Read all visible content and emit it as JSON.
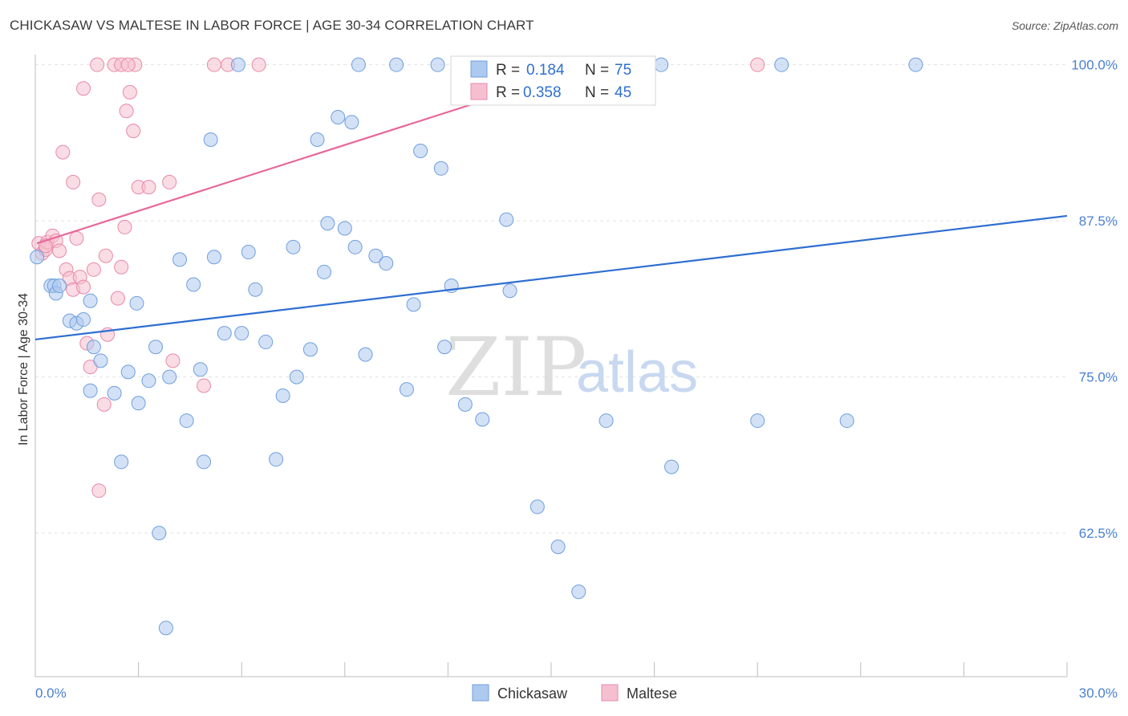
{
  "header": {
    "title": "CHICKASAW VS MALTESE IN LABOR FORCE | AGE 30-34 CORRELATION CHART",
    "source": "Source: ZipAtlas.com"
  },
  "colors": {
    "chickasaw_fill": "#aec9ef",
    "chickasaw_stroke": "#6f9fde",
    "chickasaw_line": "#2e6ed1",
    "maltese_fill": "#f6bfd0",
    "maltese_stroke": "#e889a8",
    "maltese_line": "#e8689a",
    "tick_label": "#4a7fd0",
    "grid": "#e2e2e2"
  },
  "legend": {
    "rows": [
      {
        "r_label": "R =",
        "r_value": "0.184",
        "n_label": "N =",
        "n_value": "75"
      },
      {
        "r_label": "R =",
        "r_value": "0.358",
        "n_label": "N =",
        "n_value": "45"
      }
    ]
  },
  "watermark": {
    "zip": "ZIP",
    "atlas": "atlas"
  },
  "chart_data": {
    "type": "scatter",
    "title": "CHICKASAW VS MALTESE IN LABOR FORCE | AGE 30-34 CORRELATION CHART",
    "xlabel": "",
    "ylabel": "In Labor Force | Age 30-34",
    "xlim": [
      0,
      30
    ],
    "ylim": [
      51,
      101.2
    ],
    "x_tick_labels": [
      {
        "value": 0,
        "label": "0.0%"
      },
      {
        "value": 30,
        "label": "30.0%"
      }
    ],
    "y_tick_labels": [
      {
        "value": 100,
        "label": "100.0%"
      },
      {
        "value": 87.5,
        "label": "87.5%"
      },
      {
        "value": 75,
        "label": "75.0%"
      },
      {
        "value": 62.5,
        "label": "62.5%"
      }
    ],
    "grid": true,
    "legend_position": "top-center",
    "series": [
      {
        "name": "Chickasaw",
        "trendline": {
          "x": [
            0,
            30
          ],
          "y": [
            78.0,
            87.9
          ]
        },
        "points": [
          [
            0.05,
            84.6
          ],
          [
            0.45,
            82.3
          ],
          [
            0.55,
            82.3
          ],
          [
            0.6,
            81.7
          ],
          [
            0.7,
            82.3
          ],
          [
            1.0,
            79.5
          ],
          [
            1.2,
            79.3
          ],
          [
            1.4,
            79.6
          ],
          [
            1.6,
            81.1
          ],
          [
            1.7,
            77.4
          ],
          [
            1.6,
            73.9
          ],
          [
            1.9,
            76.3
          ],
          [
            2.3,
            73.7
          ],
          [
            2.5,
            68.2
          ],
          [
            2.7,
            75.4
          ],
          [
            2.95,
            80.9
          ],
          [
            3.0,
            72.9
          ],
          [
            3.3,
            74.7
          ],
          [
            3.5,
            77.4
          ],
          [
            3.6,
            62.5
          ],
          [
            3.8,
            54.9
          ],
          [
            3.9,
            75.0
          ],
          [
            4.2,
            84.4
          ],
          [
            4.4,
            71.5
          ],
          [
            4.6,
            82.4
          ],
          [
            4.8,
            75.6
          ],
          [
            4.9,
            68.2
          ],
          [
            5.1,
            94.0
          ],
          [
            5.2,
            84.6
          ],
          [
            5.5,
            78.5
          ],
          [
            5.9,
            100.0
          ],
          [
            6.0,
            78.5
          ],
          [
            6.2,
            85.0
          ],
          [
            6.4,
            82.0
          ],
          [
            6.7,
            77.8
          ],
          [
            7.0,
            68.4
          ],
          [
            7.2,
            73.5
          ],
          [
            7.5,
            85.4
          ],
          [
            7.6,
            75.0
          ],
          [
            8.0,
            77.2
          ],
          [
            8.2,
            94.0
          ],
          [
            8.4,
            83.4
          ],
          [
            8.5,
            87.3
          ],
          [
            8.8,
            95.8
          ],
          [
            9.0,
            86.9
          ],
          [
            9.2,
            95.4
          ],
          [
            9.3,
            85.4
          ],
          [
            9.4,
            100.0
          ],
          [
            9.6,
            76.8
          ],
          [
            9.9,
            84.7
          ],
          [
            10.2,
            84.1
          ],
          [
            10.5,
            100.0
          ],
          [
            10.8,
            74.0
          ],
          [
            11.0,
            80.8
          ],
          [
            11.2,
            93.1
          ],
          [
            11.7,
            100.0
          ],
          [
            11.8,
            91.7
          ],
          [
            11.9,
            77.4
          ],
          [
            12.1,
            82.3
          ],
          [
            12.5,
            72.8
          ],
          [
            13.0,
            71.6
          ],
          [
            13.7,
            87.6
          ],
          [
            13.8,
            81.9
          ],
          [
            14.6,
            64.6
          ],
          [
            15.2,
            61.4
          ],
          [
            15.8,
            57.8
          ],
          [
            16.3,
            100.0
          ],
          [
            16.6,
            71.5
          ],
          [
            18.2,
            100.0
          ],
          [
            18.5,
            67.8
          ],
          [
            21.0,
            71.5
          ],
          [
            21.7,
            100.0
          ],
          [
            23.6,
            71.5
          ],
          [
            25.6,
            100.0
          ],
          [
            15.1,
            100.0
          ]
        ]
      },
      {
        "name": "Maltese",
        "trendline": {
          "x": [
            0.05,
            16.3
          ],
          "y": [
            85.7,
            100.0
          ]
        },
        "points": [
          [
            0.1,
            85.7
          ],
          [
            0.2,
            84.9
          ],
          [
            0.3,
            85.2
          ],
          [
            0.35,
            85.8
          ],
          [
            0.5,
            86.3
          ],
          [
            0.6,
            85.9
          ],
          [
            0.7,
            85.1
          ],
          [
            0.9,
            83.6
          ],
          [
            1.0,
            82.9
          ],
          [
            1.1,
            82.0
          ],
          [
            1.2,
            86.1
          ],
          [
            1.3,
            83.0
          ],
          [
            1.4,
            82.2
          ],
          [
            1.5,
            77.7
          ],
          [
            1.6,
            75.8
          ],
          [
            1.7,
            83.6
          ],
          [
            1.85,
            89.2
          ],
          [
            2.0,
            72.8
          ],
          [
            2.05,
            84.7
          ],
          [
            2.1,
            78.4
          ],
          [
            2.4,
            81.3
          ],
          [
            2.5,
            83.8
          ],
          [
            2.6,
            87.0
          ],
          [
            2.65,
            96.3
          ],
          [
            2.75,
            97.8
          ],
          [
            2.85,
            94.7
          ],
          [
            2.9,
            100.0
          ],
          [
            3.0,
            90.2
          ],
          [
            3.3,
            90.2
          ],
          [
            3.9,
            90.6
          ],
          [
            4.0,
            76.3
          ],
          [
            4.9,
            74.3
          ],
          [
            5.6,
            100.0
          ],
          [
            6.5,
            100.0
          ],
          [
            0.3,
            85.5
          ],
          [
            0.8,
            93.0
          ],
          [
            1.1,
            90.6
          ],
          [
            1.4,
            98.1
          ],
          [
            1.8,
            100.0
          ],
          [
            2.3,
            100.0
          ],
          [
            2.5,
            100.0
          ],
          [
            2.7,
            100.0
          ],
          [
            5.2,
            100.0
          ],
          [
            21.0,
            100.0
          ],
          [
            1.85,
            65.9
          ]
        ]
      }
    ]
  },
  "bottom_legend": {
    "items": [
      "Chickasaw",
      "Maltese"
    ]
  }
}
